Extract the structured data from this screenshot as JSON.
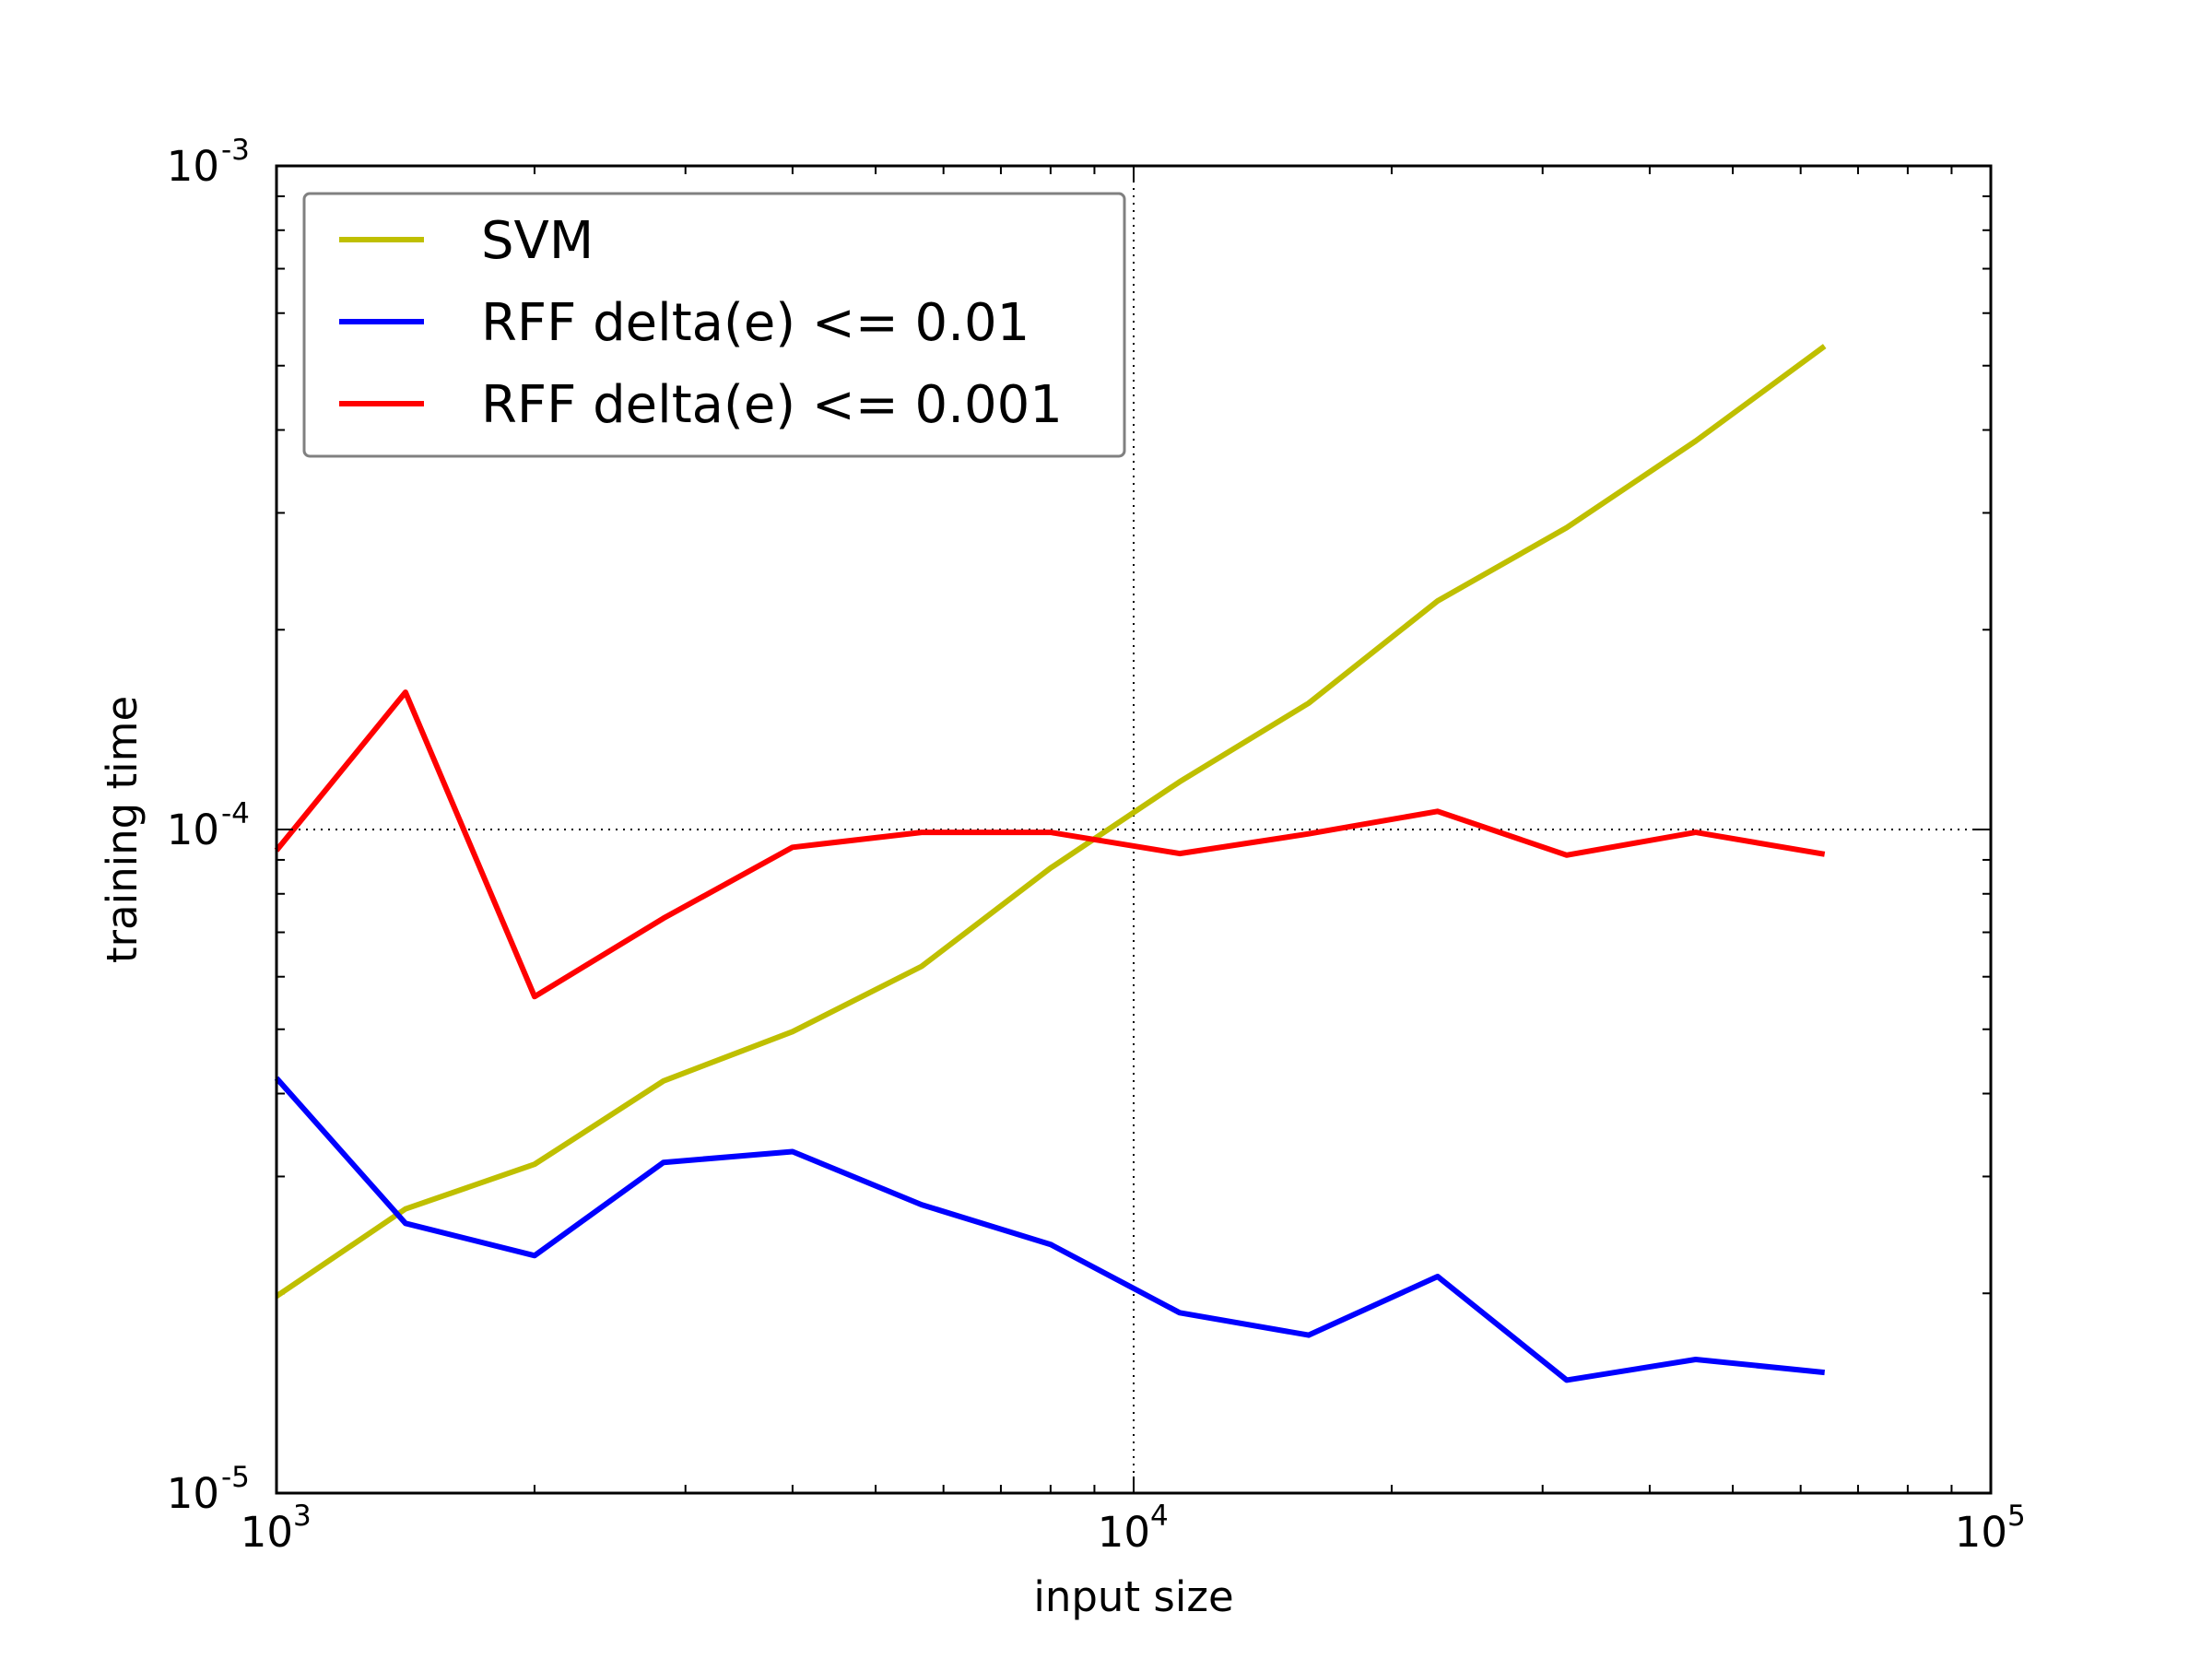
{
  "chart_data": {
    "type": "line",
    "title": "",
    "xlabel": "input size",
    "ylabel": "training time",
    "xscale": "log",
    "yscale": "log",
    "xlim": [
      1000,
      100000
    ],
    "ylim": [
      1e-05,
      0.001
    ],
    "grid": "major ticks only, dotted, black",
    "legend_position": "upper-left",
    "x_ticks": [
      {
        "value": 1000,
        "base": "10",
        "exponent": "3"
      },
      {
        "value": 10000,
        "base": "10",
        "exponent": "4"
      },
      {
        "value": 100000,
        "base": "10",
        "exponent": "5"
      }
    ],
    "y_ticks": [
      {
        "value": 1e-05,
        "base": "10",
        "exponent": "-5"
      },
      {
        "value": 0.0001,
        "base": "10",
        "exponent": "-4"
      },
      {
        "value": 0.001,
        "base": "10",
        "exponent": "-3"
      }
    ],
    "x": [
      1000,
      1414,
      2000,
      2828,
      4000,
      5657,
      8000,
      11314,
      16000,
      22627,
      32000,
      45255,
      64000
    ],
    "series": [
      {
        "name": "SVM",
        "color": "#bfbf00",
        "values": [
          1.98e-05,
          2.68e-05,
          3.13e-05,
          4.18e-05,
          4.96e-05,
          6.22e-05,
          8.75e-05,
          0.000118,
          0.000155,
          0.000221,
          0.000285,
          0.000385,
          0.000535
        ]
      },
      {
        "name": "RFF delta(e) <= 0.01",
        "color": "#0000ff",
        "values": [
          4.22e-05,
          2.55e-05,
          2.28e-05,
          3.15e-05,
          3.27e-05,
          2.72e-05,
          2.37e-05,
          1.87e-05,
          1.73e-05,
          2.12e-05,
          1.48e-05,
          1.59e-05,
          1.52e-05
        ]
      },
      {
        "name": "RFF delta(e) <= 0.001",
        "color": "#ff0000",
        "values": [
          9.3e-05,
          0.000161,
          5.6e-05,
          7.35e-05,
          9.4e-05,
          9.9e-05,
          9.9e-05,
          9.2e-05,
          9.85e-05,
          0.0001065,
          9.15e-05,
          9.9e-05,
          9.18e-05
        ]
      }
    ]
  }
}
